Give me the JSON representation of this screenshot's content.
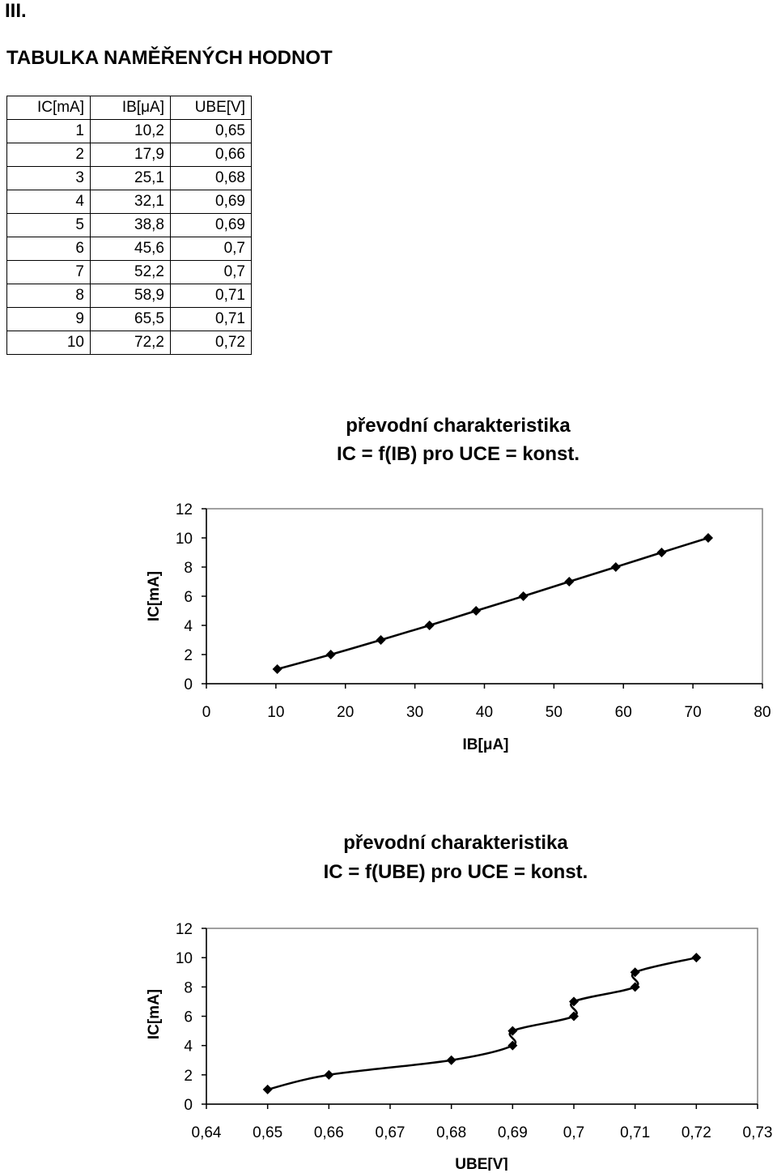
{
  "section_number": "III.",
  "table_heading": "TABULKA NAMĚŘENÝCH HODNOT",
  "table": {
    "headers": [
      "IC[mA]",
      "IB[μA]",
      "UBE[V]"
    ],
    "rows": [
      [
        "1",
        "10,2",
        "0,65"
      ],
      [
        "2",
        "17,9",
        "0,66"
      ],
      [
        "3",
        "25,1",
        "0,68"
      ],
      [
        "4",
        "32,1",
        "0,69"
      ],
      [
        "5",
        "38,8",
        "0,69"
      ],
      [
        "6",
        "45,6",
        "0,7"
      ],
      [
        "7",
        "52,2",
        "0,7"
      ],
      [
        "8",
        "58,9",
        "0,71"
      ],
      [
        "9",
        "65,5",
        "0,71"
      ],
      [
        "10",
        "72,2",
        "0,72"
      ]
    ]
  },
  "chart_data": [
    {
      "type": "line",
      "title": [
        "převodní charakteristika",
        "IC = f(IB) pro UCE = konst."
      ],
      "xlabel": "IB[μA]",
      "ylabel": "IC[mA]",
      "x": [
        10.2,
        17.9,
        25.1,
        32.1,
        38.8,
        45.6,
        52.2,
        58.9,
        65.5,
        72.2
      ],
      "y": [
        1,
        2,
        3,
        4,
        5,
        6,
        7,
        8,
        9,
        10
      ],
      "xlim": [
        0,
        80
      ],
      "ylim": [
        0,
        12
      ],
      "xticks": [
        "0",
        "10",
        "20",
        "30",
        "40",
        "50",
        "60",
        "70",
        "80"
      ],
      "yticks": [
        "0",
        "2",
        "4",
        "6",
        "8",
        "10",
        "12"
      ],
      "smooth": true,
      "marker": "diamond",
      "grid": false,
      "legend": "none",
      "line_color": "#000000"
    },
    {
      "type": "line",
      "title": [
        "převodní charakteristika",
        "IC = f(UBE) pro UCE = konst."
      ],
      "xlabel": "UBE[V]",
      "ylabel": "IC[mA]",
      "x": [
        0.65,
        0.66,
        0.68,
        0.69,
        0.69,
        0.7,
        0.7,
        0.71,
        0.71,
        0.72
      ],
      "y": [
        1,
        2,
        3,
        4,
        5,
        6,
        7,
        8,
        9,
        10
      ],
      "xlim": [
        0.64,
        0.73
      ],
      "ylim": [
        0,
        12
      ],
      "xticks": [
        "0,64",
        "0,65",
        "0,66",
        "0,67",
        "0,68",
        "0,69",
        "0,7",
        "0,71",
        "0,72",
        "0,73"
      ],
      "yticks": [
        "0",
        "2",
        "4",
        "6",
        "8",
        "10",
        "12"
      ],
      "smooth": true,
      "marker": "diamond",
      "grid": false,
      "legend": "none",
      "line_color": "#000000"
    }
  ]
}
